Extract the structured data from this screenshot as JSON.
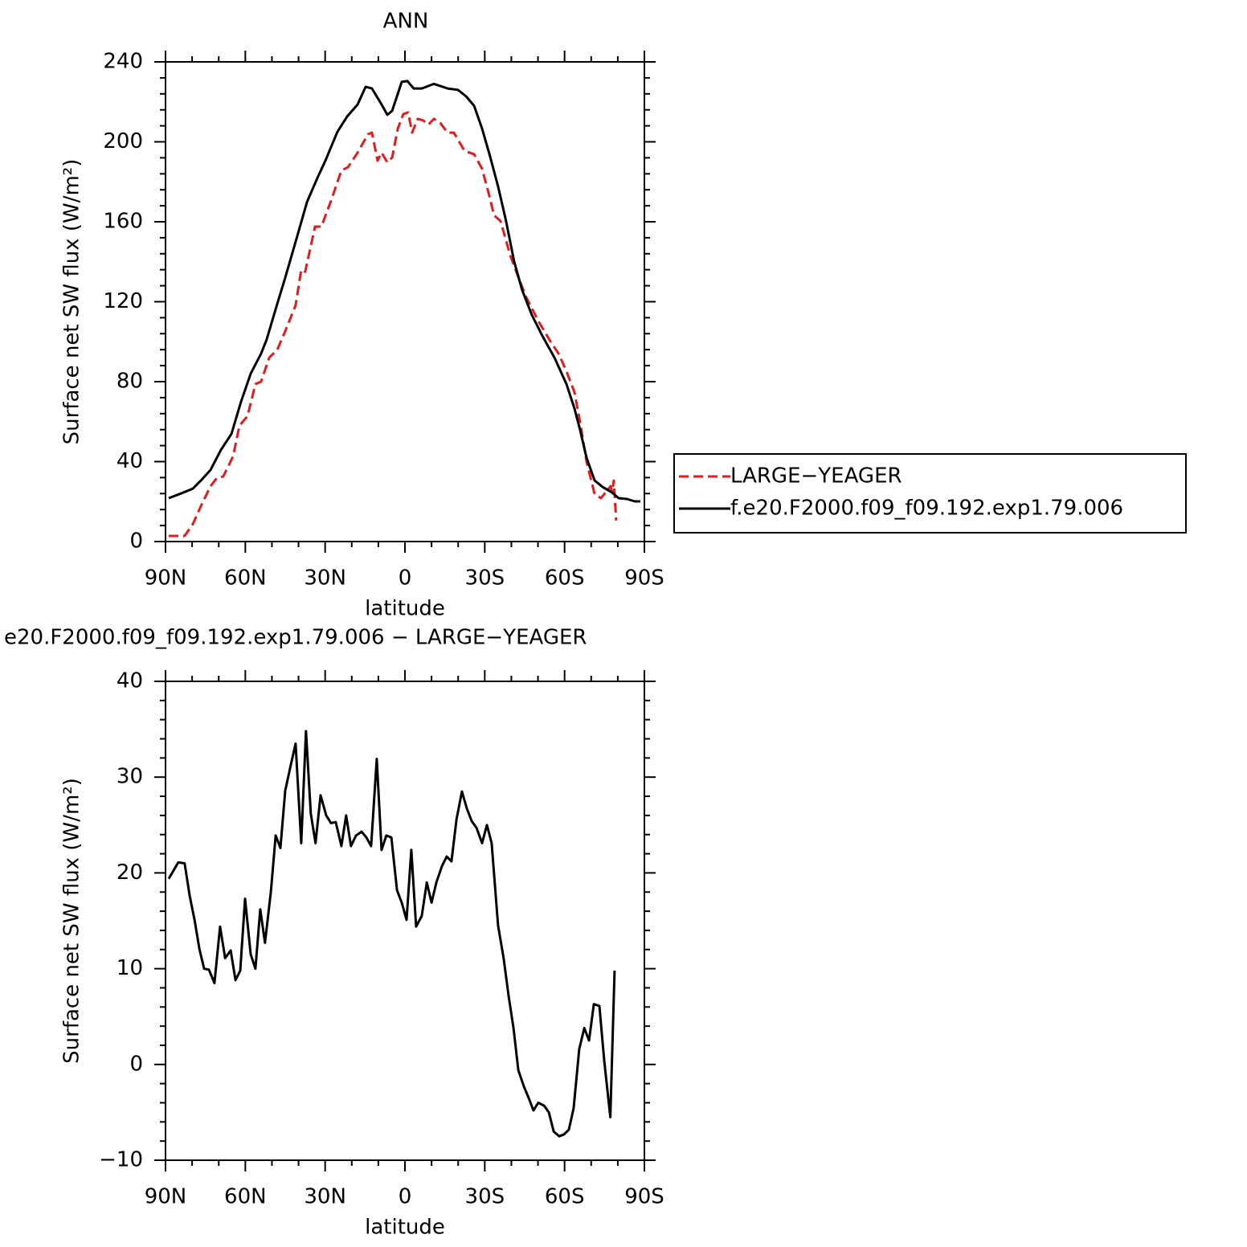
{
  "chart_data": [
    {
      "type": "line",
      "title": "ANN",
      "xlabel": "latitude",
      "ylabel": "Surface net SW flux (W/m²)",
      "xlim": [
        90,
        -90
      ],
      "xticks": [
        {
          "value": 90,
          "label": "90N"
        },
        {
          "value": 60,
          "label": "60N"
        },
        {
          "value": 30,
          "label": "30N"
        },
        0,
        {
          "value": -30,
          "label": "30S"
        },
        {
          "value": -60,
          "label": "60S"
        },
        {
          "value": -90,
          "label": "90S"
        }
      ],
      "ylim": [
        0,
        240
      ],
      "yticks": [
        0,
        40,
        80,
        120,
        160,
        200,
        240
      ],
      "legend": "right",
      "series": [
        {
          "name": "LARGE−YEAGER",
          "color": "#e41a1c",
          "line_style": "dashed",
          "x": [
            88.8,
            82.8,
            79.7,
            76.7,
            73.1,
            70.7,
            68.3,
            64.6,
            62.2,
            59.2,
            56.2,
            54.1,
            51,
            48,
            45,
            41.1,
            39,
            37.5,
            33.8,
            31.4,
            27.8,
            23.9,
            21.4,
            17.8,
            13.9,
            12.4,
            10.3,
            8.8,
            6.6,
            4.8,
            2.7,
            0.6,
            -1.2,
            -2.7,
            -4.8,
            -6.9,
            -8.8,
            -10.9,
            -13.3,
            -16,
            -18.4,
            -22.4,
            -26,
            -29,
            -31.4,
            -33.5,
            -35.9,
            -39.6,
            -42.6,
            -45.6,
            -50.2,
            -54.7,
            -57.7,
            -60.7,
            -63.7,
            -65.8,
            -68.3,
            -71.3,
            -73.7,
            -77.3,
            -77.9,
            -78.5,
            -79.4
          ],
          "values": [
            2.8,
            2.8,
            8.8,
            17.7,
            27.7,
            31.8,
            32.6,
            42.6,
            58,
            62.7,
            78.8,
            80,
            92,
            96,
            105.3,
            118.2,
            136,
            135,
            157.6,
            157.6,
            170.5,
            185.7,
            187.3,
            194.6,
            203.8,
            204.6,
            190.6,
            194.6,
            189.7,
            192.2,
            206.6,
            213.9,
            214.7,
            204.6,
            211.5,
            210.7,
            208.6,
            211.5,
            209.4,
            204.6,
            204.6,
            195.4,
            193.8,
            186.5,
            174.5,
            163.2,
            160.4,
            143.1,
            132.3,
            122.2,
            110.2,
            100.1,
            94.1,
            85.2,
            74.8,
            59.9,
            39.8,
            23.7,
            21.7,
            27.7,
            24.9,
            30.5,
            10.5
          ]
        },
        {
          "name": "f.e20.F2000.f09_f09.192.exp1.79.006",
          "color": "#000000",
          "line_style": "solid",
          "x": [
            88.8,
            84.3,
            79.7,
            76.7,
            73.1,
            69.2,
            65.2,
            61.6,
            58,
            54.1,
            52,
            48,
            45,
            41.1,
            36.8,
            32.9,
            29.9,
            25.4,
            21.7,
            17.8,
            14.8,
            12.4,
            8.8,
            6.6,
            4.8,
            1.2,
            -0.9,
            -3.3,
            -6.3,
            -10.9,
            -16,
            -19.9,
            -23,
            -26,
            -29,
            -32,
            -35,
            -38,
            -41,
            -44,
            -47.7,
            -51.6,
            -56.2,
            -60.7,
            -63.7,
            -65.8,
            -68.3,
            -71.3,
            -74.3,
            -77.9,
            -80.3,
            -83.4,
            -86.4,
            -88.5
          ],
          "values": [
            21.7,
            24,
            26.5,
            30.5,
            35.8,
            45.8,
            53.9,
            70,
            84,
            94,
            101,
            119,
            132,
            150,
            170,
            182,
            190.6,
            205,
            212.7,
            218.7,
            227.5,
            226.7,
            218.7,
            213.5,
            215.5,
            230,
            230.4,
            226.7,
            226.7,
            229,
            226.7,
            226,
            222.7,
            218,
            206.6,
            192.6,
            177.7,
            160.4,
            140.3,
            126,
            113.4,
            103,
            92,
            78.8,
            66.7,
            55.9,
            41.8,
            30.5,
            27.3,
            24.5,
            21.7,
            21.3,
            20.1,
            20.1
          ]
        }
      ]
    },
    {
      "type": "line",
      "title": "e20.F2000.f09_f09.192.exp1.79.006 − LARGE−YEAGER",
      "xlabel": "latitude",
      "ylabel": "Surface net SW flux (W/m²)",
      "xlim": [
        90,
        -90
      ],
      "xticks": [
        {
          "value": 90,
          "label": "90N"
        },
        {
          "value": 60,
          "label": "60N"
        },
        {
          "value": 30,
          "label": "30N"
        },
        0,
        {
          "value": -30,
          "label": "30S"
        },
        {
          "value": -60,
          "label": "60S"
        },
        {
          "value": -90,
          "label": "90S"
        }
      ],
      "ylim": [
        -10,
        40
      ],
      "yticks": [
        {
          "value": -10,
          "label": "−10"
        },
        0,
        10,
        20,
        30,
        40
      ],
      "series": [
        {
          "color": "#000000",
          "line_style": "solid",
          "x": [
            88.8,
            85.2,
            82.8,
            80.9,
            79.1,
            77.3,
            75.5,
            73.7,
            71.6,
            69.5,
            67.6,
            65.5,
            63.7,
            61.9,
            60.1,
            58,
            56.2,
            54.4,
            52.6,
            50.4,
            48.6,
            46.8,
            45,
            42.9,
            41.1,
            39,
            37.2,
            35.4,
            33.6,
            31.7,
            29.6,
            27.8,
            26,
            23.9,
            22.1,
            20.3,
            18.4,
            16.3,
            14.5,
            12.7,
            10.6,
            8.8,
            7,
            5.1,
            3,
            1.2,
            -0.6,
            -2.4,
            -4.2,
            -6.3,
            -8.2,
            -10,
            -11.8,
            -13.9,
            -15.7,
            -17.5,
            -19.4,
            -21.4,
            -23.3,
            -25.1,
            -26.9,
            -29,
            -30.8,
            -32.6,
            -35,
            -37.1,
            -39,
            -40.8,
            -42.6,
            -44.7,
            -46.5,
            -48.3,
            -50.1,
            -52.3,
            -54.1,
            -55.9,
            -58,
            -59.8,
            -61.6,
            -63.4,
            -65.5,
            -67.4,
            -69.2,
            -71,
            -73.1,
            -74.9,
            -77.2,
            -78.8
          ],
          "values": [
            19.4,
            21.1,
            21,
            17.6,
            15.1,
            12.1,
            10,
            9.9,
            8.5,
            14.4,
            11.1,
            11.9,
            8.8,
            9.8,
            17.3,
            11.5,
            10,
            16.2,
            12.7,
            18,
            23.9,
            22.6,
            28.6,
            31.3,
            33.5,
            23.1,
            34.8,
            26.2,
            23.1,
            28.1,
            26,
            25.2,
            25.3,
            22.8,
            26,
            22.8,
            23.9,
            24.3,
            23.7,
            22.8,
            31.9,
            22.4,
            23.9,
            23.7,
            18.2,
            16.9,
            15.1,
            22.4,
            14.4,
            15.5,
            19,
            16.9,
            19,
            20.7,
            21.7,
            21.2,
            25.6,
            28.5,
            26.7,
            25.4,
            24.7,
            23.1,
            25,
            23.1,
            14.5,
            11.1,
            7.1,
            3.8,
            -0.6,
            -2.3,
            -3.5,
            -4.8,
            -4,
            -4.3,
            -5,
            -7,
            -7.5,
            -7.3,
            -6.8,
            -4.6,
            1.6,
            3.8,
            2.5,
            6.3,
            6.1,
            0.4,
            -5.5,
            9.8
          ]
        }
      ]
    }
  ]
}
